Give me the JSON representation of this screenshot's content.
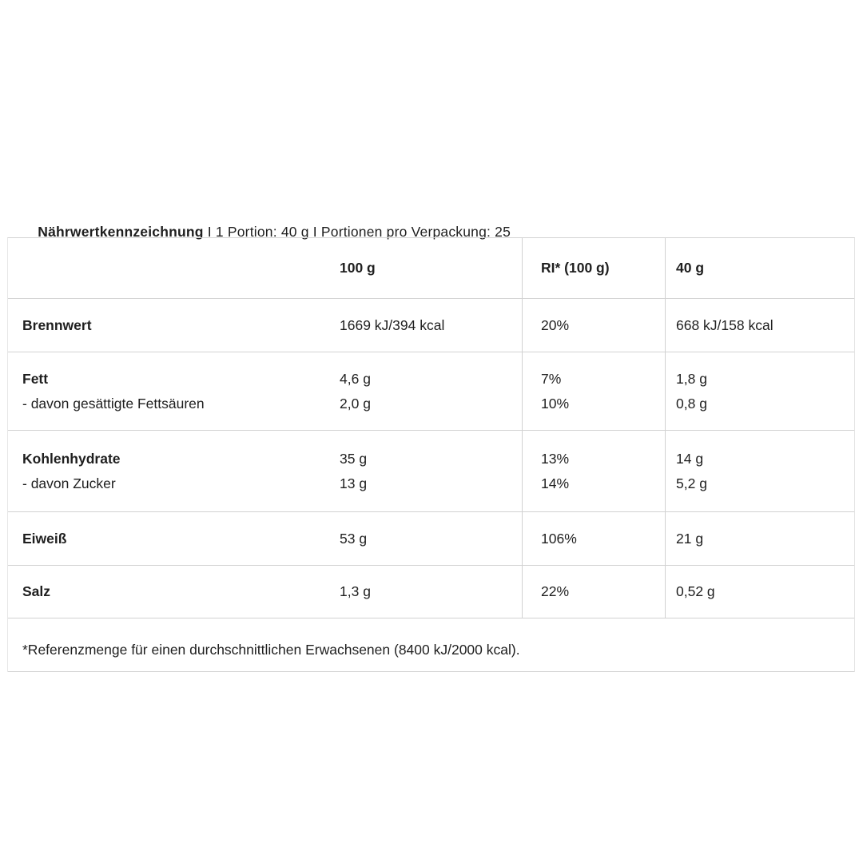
{
  "header": {
    "title_bold": "Nährwertkennzeichnung",
    "title_rest": " I 1 Portion: 40 g I Portionen pro Verpackung: 25"
  },
  "table": {
    "headers": {
      "per100g": "100 g",
      "ri": "RI* (100 g)",
      "per40g": "40 g"
    },
    "rows": [
      {
        "label": "Brennwert",
        "v100": "1669 kJ/394 kcal",
        "ri": "20%",
        "v40": "668 kJ/158 kcal"
      },
      {
        "label": "Fett",
        "v100": "4,6 g",
        "ri": "7%",
        "v40": "1,8 g",
        "sub": {
          "label": "- davon gesättigte Fettsäuren",
          "v100": "2,0 g",
          "ri": "10%",
          "v40": "0,8 g"
        }
      },
      {
        "label": "Kohlenhydrate",
        "v100": "35 g",
        "ri": "13%",
        "v40": "14 g",
        "sub": {
          "label": "- davon Zucker",
          "v100": "13 g",
          "ri": "14%",
          "v40": "5,2 g"
        }
      },
      {
        "label": "Eiweiß",
        "v100": "53 g",
        "ri": "106%",
        "v40": "21 g"
      },
      {
        "label": "Salz",
        "v100": "1,3 g",
        "ri": "22%",
        "v40": "0,52 g"
      }
    ],
    "footnote": "*Referenzmenge für einen durchschnittlichen Erwachsenen (8400 kJ/2000 kcal)."
  },
  "colors": {
    "text": "#1f1f1f",
    "rule": "#d2d2d2",
    "background": "#ffffff"
  }
}
